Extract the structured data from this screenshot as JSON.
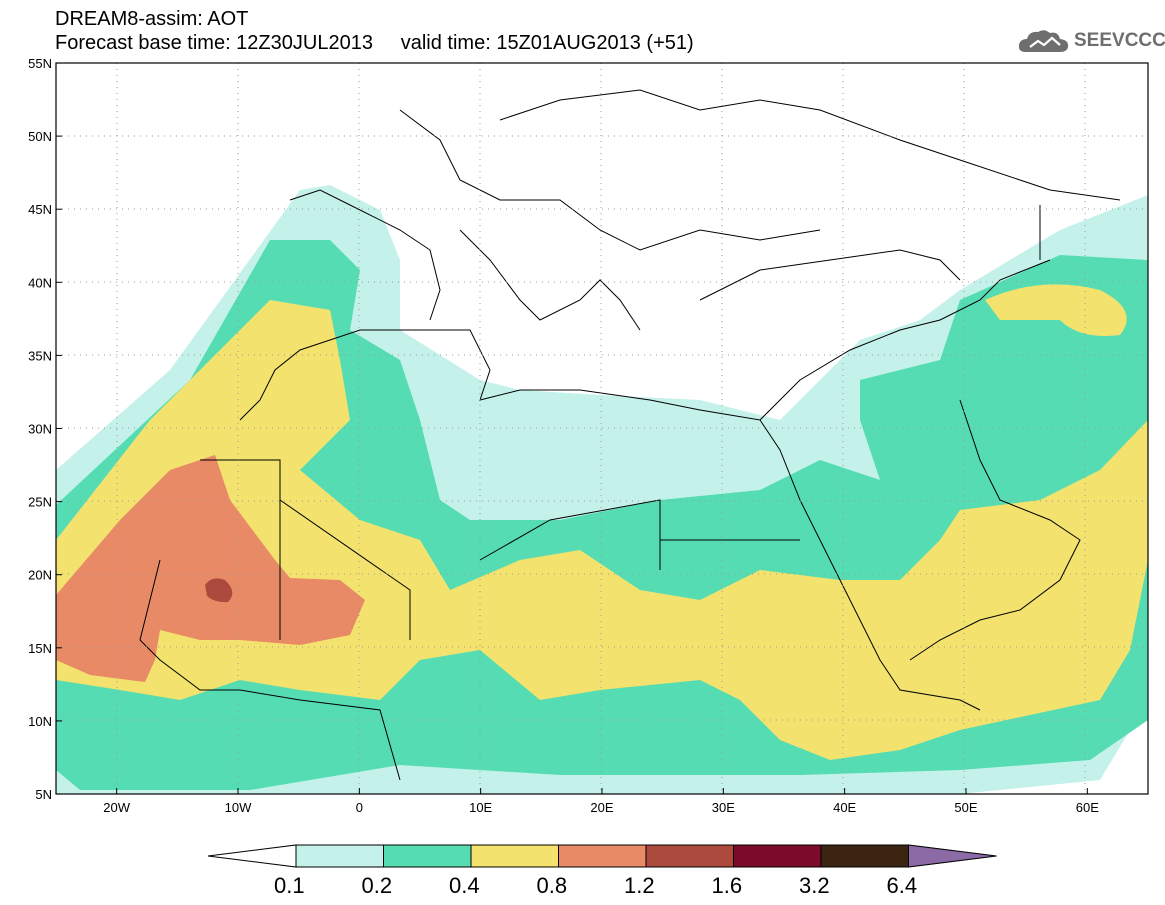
{
  "header": {
    "title": "DREAM8-assim: AOT",
    "subtitle": "Forecast base time: 12Z30JUL2013     valid time: 15Z01AUG2013 (+51)"
  },
  "logo": {
    "text": "SEEVCCC",
    "icon": "cloud-icon"
  },
  "map": {
    "lon_range": [
      -25,
      65
    ],
    "lat_range": [
      5,
      55
    ],
    "lat_labels": [
      "55N",
      "50N",
      "45N",
      "40N",
      "35N",
      "30N",
      "25N",
      "20N",
      "15N",
      "10N",
      "5N"
    ],
    "lon_labels": [
      "20W",
      "10W",
      "0",
      "10E",
      "20E",
      "30E",
      "40E",
      "50E",
      "60E"
    ],
    "grid": true
  },
  "colorbar": {
    "labels": [
      "0.1",
      "0.2",
      "0.4",
      "0.8",
      "1.2",
      "1.6",
      "3.2",
      "6.4"
    ],
    "colors": [
      "#ffffff",
      "#c4f1ea",
      "#56dcb2",
      "#f4e26e",
      "#e98a66",
      "#ad4a3e",
      "#7c0a2a",
      "#3b2412",
      "#8c6aa6"
    ]
  }
}
